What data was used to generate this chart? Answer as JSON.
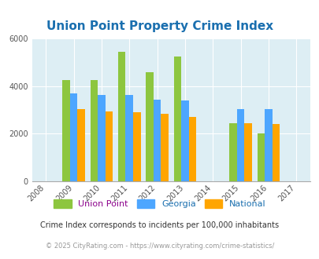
{
  "title": "Union Point Property Crime Index",
  "years": [
    2008,
    2009,
    2010,
    2011,
    2012,
    2013,
    2014,
    2015,
    2016,
    2017
  ],
  "data_years": [
    2009,
    2010,
    2011,
    2012,
    2013,
    2015,
    2016
  ],
  "union_point": [
    4250,
    4250,
    5450,
    4600,
    5250,
    2450,
    2000
  ],
  "georgia": [
    3700,
    3650,
    3650,
    3450,
    3400,
    3050,
    3050
  ],
  "national": [
    3050,
    2950,
    2900,
    2850,
    2700,
    2450,
    2400
  ],
  "bar_width": 0.27,
  "colors": {
    "union_point": "#8dc63f",
    "georgia": "#4da6ff",
    "national": "#ffa500"
  },
  "ylim": [
    0,
    6000
  ],
  "yticks": [
    0,
    2000,
    4000,
    6000
  ],
  "background_color": "#ddeef4",
  "title_color": "#1a6faf",
  "footnote1": "Crime Index corresponds to incidents per 100,000 inhabitants",
  "footnote2": "© 2025 CityRating.com - https://www.cityrating.com/crime-statistics/",
  "footnote1_color": "#333333",
  "footnote2_color": "#999999"
}
